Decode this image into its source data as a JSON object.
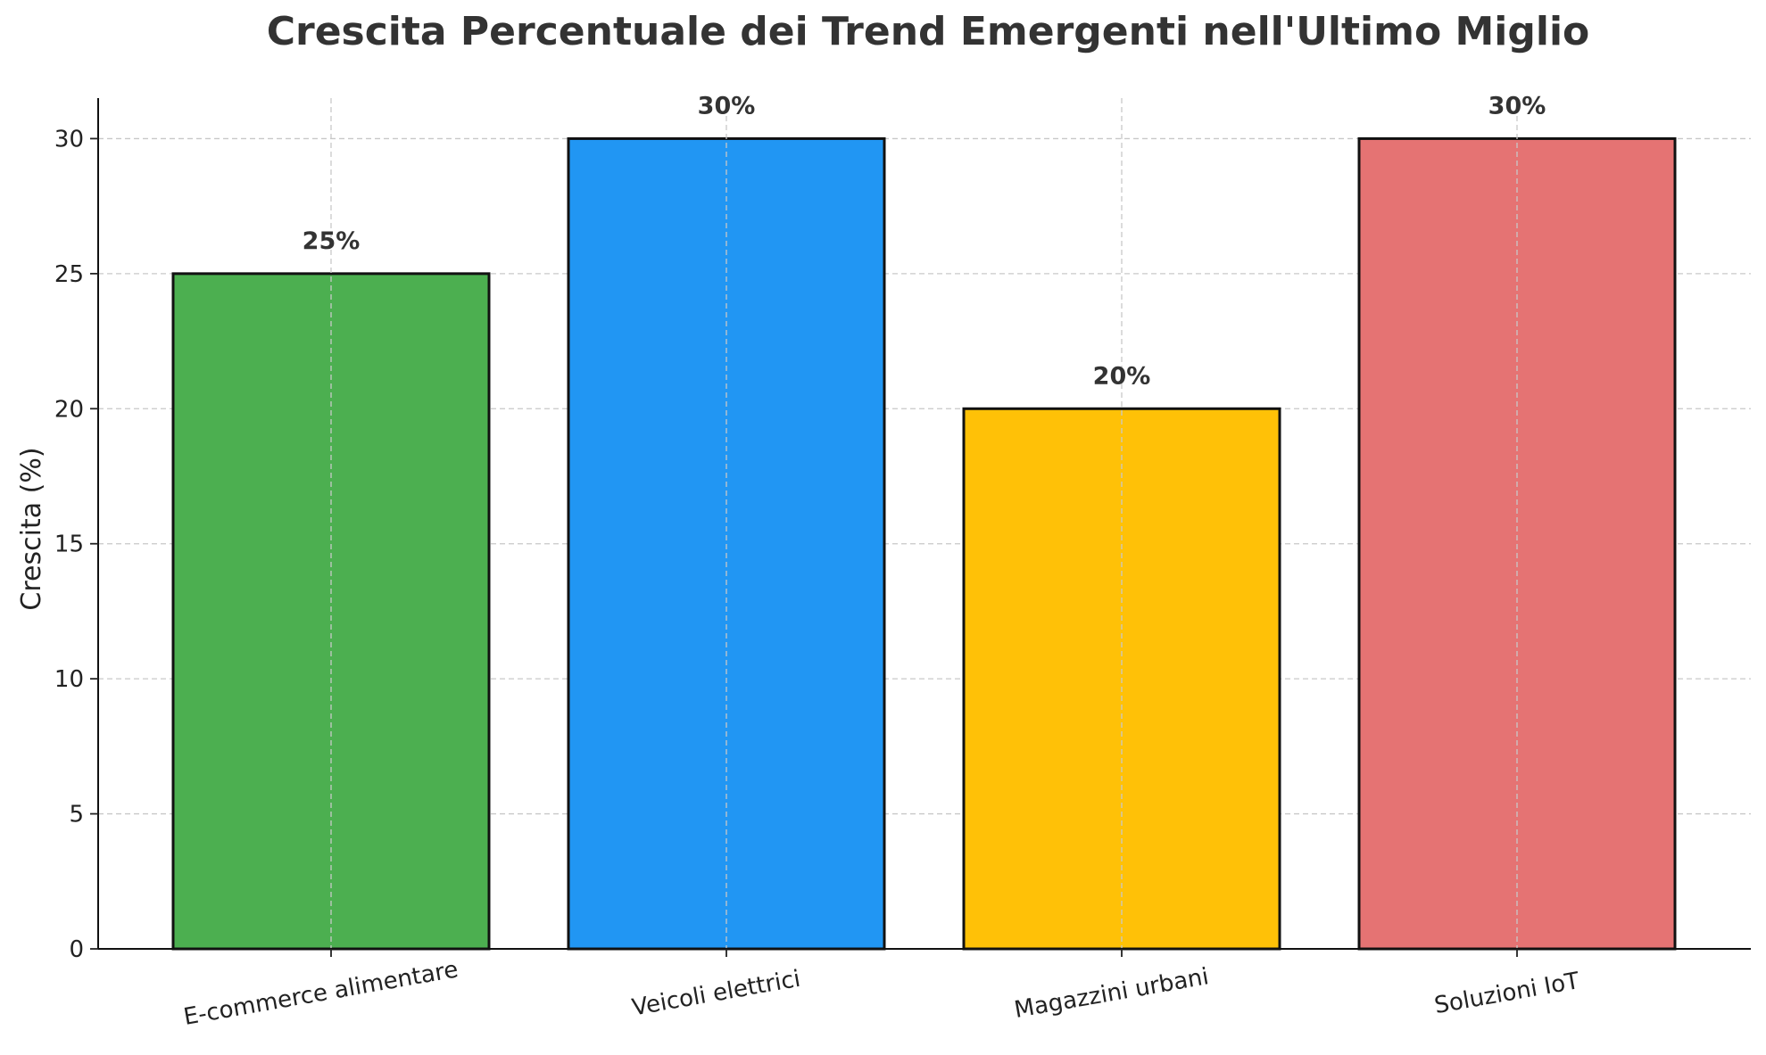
{
  "chart_data": {
    "type": "bar",
    "title": "Crescita Percentuale dei Trend Emergenti nell'Ultimo Miglio",
    "xlabel": "",
    "ylabel": "Crescita (%)",
    "categories": [
      "E-commerce alimentare",
      "Veicoli elettrici",
      "Magazzini urbani",
      "Soluzioni IoT"
    ],
    "values": [
      25,
      30,
      20,
      30
    ],
    "value_labels": [
      "25%",
      "30%",
      "20%",
      "30%"
    ],
    "colors": [
      "#4caf50",
      "#2196f3",
      "#ffc107",
      "#e57373"
    ],
    "ylim": [
      0,
      31.5
    ],
    "yticks": [
      0,
      5,
      10,
      15,
      20,
      25,
      30
    ],
    "grid": true,
    "legend": "none"
  }
}
